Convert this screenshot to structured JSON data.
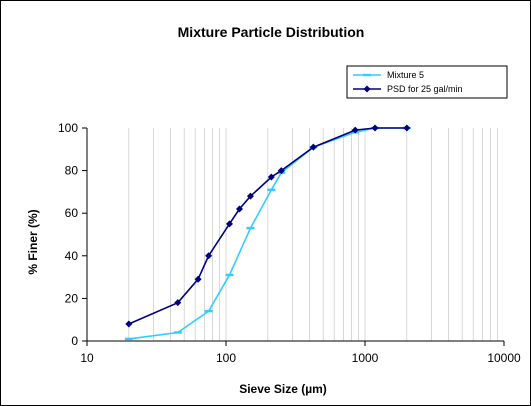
{
  "chart_data": {
    "type": "line",
    "title": "Mixture Particle Distribution",
    "xlabel": "Sieve Size (µm)",
    "ylabel": "% Finer (%)",
    "xscale": "log",
    "xlim": [
      10,
      10000
    ],
    "ylim": [
      0,
      100
    ],
    "x_ticks": [
      10,
      100,
      1000,
      10000
    ],
    "y_ticks": [
      0,
      20,
      40,
      60,
      80,
      100
    ],
    "x_tick_labels": [
      "10",
      "100",
      "1000",
      "10000"
    ],
    "y_tick_labels": [
      "0",
      "20",
      "40",
      "60",
      "80",
      "100"
    ],
    "grid": "vertical-log-minor",
    "legend_position": "top-right",
    "series": [
      {
        "name": "Mixture 5",
        "color": "#33CCFF",
        "marker": "dash",
        "x": [
          20,
          45,
          75,
          106,
          150,
          212,
          250,
          425,
          850,
          1180,
          2000
        ],
        "y": [
          1,
          4,
          14,
          31,
          53,
          71,
          79,
          91,
          98,
          100,
          100
        ]
      },
      {
        "name": "PSD for 25 gal/min",
        "color": "#000080",
        "marker": "diamond",
        "x": [
          20,
          45,
          63,
          75,
          106,
          125,
          150,
          212,
          250,
          425,
          850,
          1180,
          2000
        ],
        "y": [
          8,
          18,
          29,
          40,
          55,
          62,
          68,
          77,
          80,
          91,
          99,
          100,
          100
        ]
      }
    ]
  }
}
